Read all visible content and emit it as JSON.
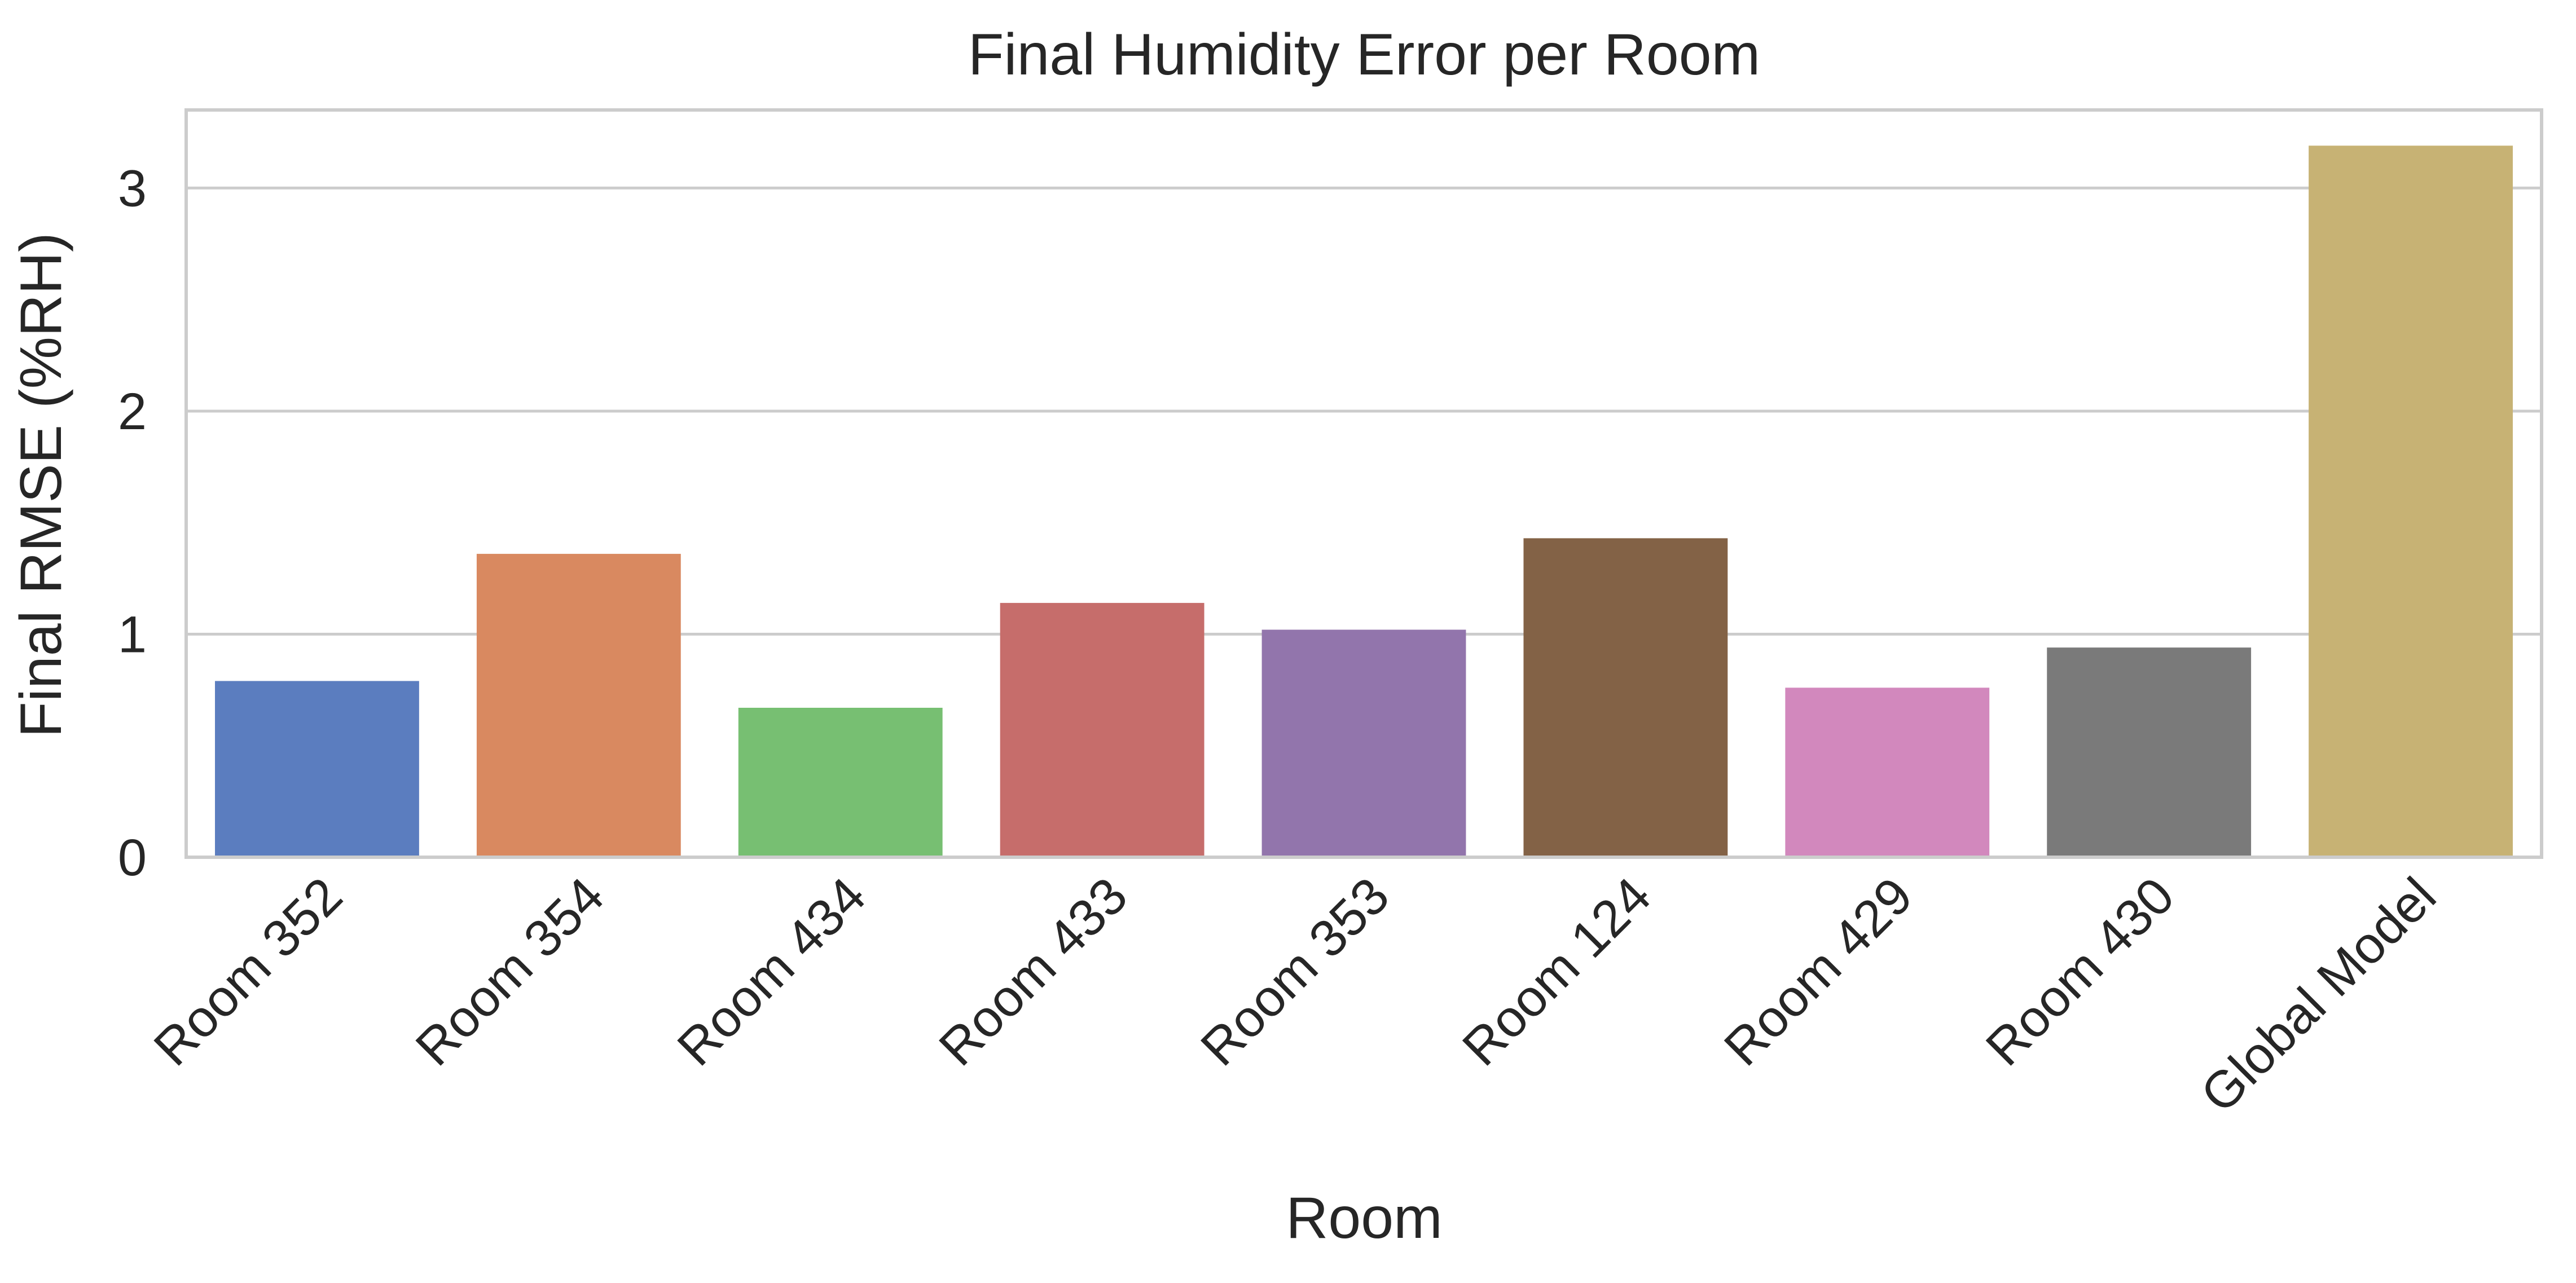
{
  "chart_data": {
    "type": "bar",
    "title": "Final Humidity Error per Room",
    "xlabel": "Room",
    "ylabel": "Final RMSE (%RH)",
    "categories": [
      "Room 352",
      "Room 354",
      "Room 434",
      "Room 433",
      "Room 353",
      "Room 124",
      "Room 429",
      "Room 430",
      "Global Model"
    ],
    "values": [
      0.79,
      1.36,
      0.67,
      1.14,
      1.02,
      1.43,
      0.76,
      0.94,
      3.19
    ],
    "colors": [
      "#5b7dbf",
      "#d98960",
      "#77bf72",
      "#c66d6b",
      "#9275ac",
      "#836246",
      "#d288bd",
      "#7a7a7a",
      "#c7b274"
    ],
    "ylim": [
      0,
      3.35
    ],
    "yticks": [
      "0",
      "1",
      "2",
      "3"
    ],
    "grid": "horizontal"
  }
}
